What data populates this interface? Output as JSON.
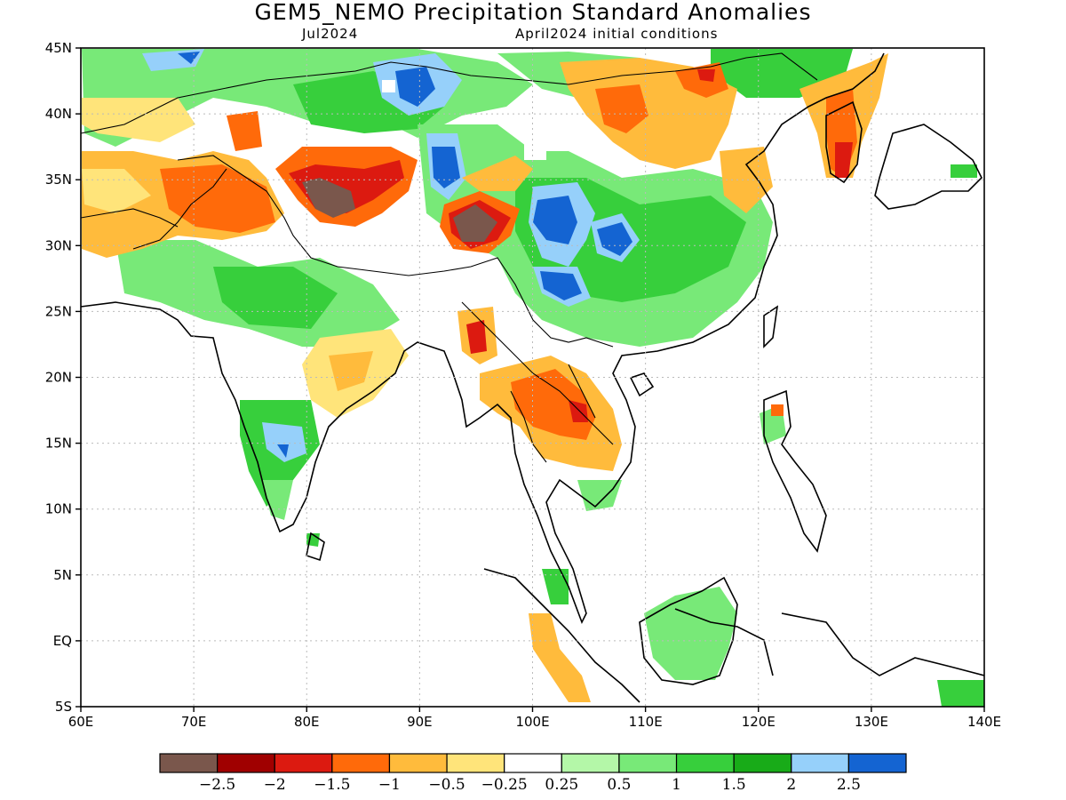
{
  "title": "GEM5_NEMO Precipitation Standard Anomalies",
  "subtitle_left": "Jul2024",
  "subtitle_right": "April2024 initial conditions",
  "lon_labels": [
    "60E",
    "70E",
    "80E",
    "90E",
    "100E",
    "110E",
    "120E",
    "130E",
    "140E"
  ],
  "lat_labels": [
    "45N",
    "40N",
    "35N",
    "30N",
    "25N",
    "20N",
    "15N",
    "10N",
    "5N",
    "EQ",
    "5S"
  ],
  "extent": {
    "lon_min": 60,
    "lon_max": 140,
    "lat_min": -5,
    "lat_max": 45
  },
  "colorbar": {
    "colors": [
      "#7a574c",
      "#a00000",
      "#dc1a10",
      "#ff6a0a",
      "#ffbb3c",
      "#ffe47a",
      "#ffffff",
      "#b4f7a8",
      "#78e978",
      "#37cf3c",
      "#18ab18",
      "#96d0fa",
      "#1464d2"
    ],
    "labels": [
      "-2.5",
      "-2",
      "-1.5",
      "-1",
      "-0.5",
      "-0.25",
      "0.25",
      "0.5",
      "1",
      "1.5",
      "2",
      "2.5"
    ]
  },
  "colors": {
    "land_line": "#000000",
    "grid": "#bbbbbb",
    "background": "#ffffff"
  }
}
